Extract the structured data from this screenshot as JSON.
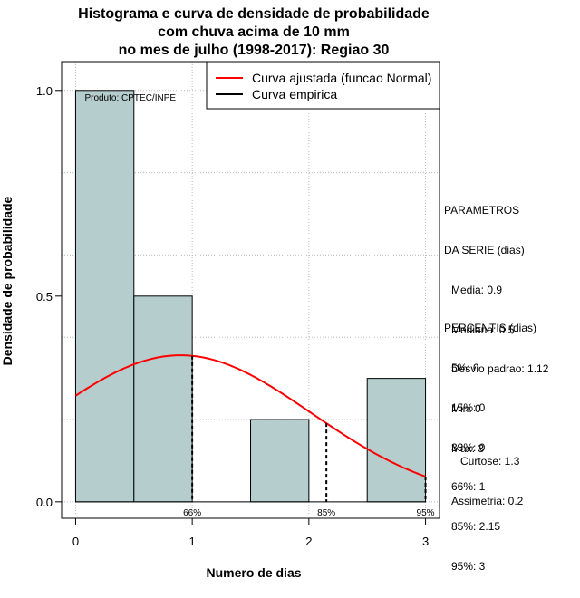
{
  "chart_data": {
    "type": "bar",
    "title": [
      "Histograma e curva de densidade de probabilidade",
      "com chuva acima de 10 mm",
      "no mes de julho (1998-2017): Regiao 30"
    ],
    "xlabel": "Numero de dias",
    "ylabel": "Densidade de probabilidade",
    "xlim": [
      -0.12,
      3.12
    ],
    "ylim": [
      -0.04,
      1.07
    ],
    "x_ticks": [
      0,
      1,
      2,
      3
    ],
    "x_tick_labels": [
      "0",
      "1",
      "2",
      "3"
    ],
    "y_ticks": [
      0,
      0.5,
      1
    ],
    "y_tick_labels": [
      "0.0",
      "0.5",
      "1.0"
    ],
    "grid": true,
    "bars": [
      {
        "x0": 0.0,
        "x1": 0.5,
        "value": 1.0
      },
      {
        "x0": 0.5,
        "x1": 1.0,
        "value": 0.5
      },
      {
        "x0": 1.5,
        "x1": 2.0,
        "value": 0.2
      },
      {
        "x0": 2.5,
        "x1": 3.0,
        "value": 0.3
      }
    ],
    "normal_curve": {
      "mean": 0.9,
      "sd": 1.12,
      "x_from": 0,
      "x_to": 3
    },
    "percentile_markers": [
      {
        "x": 1.0,
        "label": "66%"
      },
      {
        "x": 2.15,
        "label": "85%"
      },
      {
        "x": 3.0,
        "label": "95%"
      }
    ],
    "legend": {
      "position": "top-right",
      "entries": [
        {
          "label": "Curva ajustada (funcao Normal)",
          "color": "#ff0000"
        },
        {
          "label": "Curva empirica",
          "color": "#000000"
        }
      ]
    },
    "annotation": "Produto: CPTEC/INPE",
    "colors": {
      "bar_fill": "#b5cdcd",
      "curve": "#ff0000",
      "grid": "#bbbbbb"
    }
  },
  "parametros": {
    "header1": "PARAMETROS",
    "header2": "DA SERIE (dias)",
    "media": "Media: 0.9",
    "mediana": "Mediana: 0.5",
    "desvio": "Desvio padrao: 1.12",
    "min": "Min: 0",
    "max": "Max: 3"
  },
  "percentis": {
    "header": "PERCENTIS (dias)",
    "p5": "5%: 0",
    "p15": "15%: 0",
    "p33": "33%: 0",
    "p66": "66%: 1",
    "p85": "85%: 2.15",
    "p95": "95%: 3"
  },
  "momentos": {
    "curtose": "Curtose: 1.3",
    "assimetria": "Assimetria: 0.2"
  }
}
